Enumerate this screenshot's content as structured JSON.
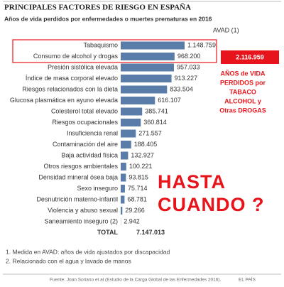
{
  "chart_data": {
    "type": "bar",
    "title": "PRINCIPALES FACTORES DE RIESGO EN ESPAÑA",
    "subtitle": "Años de vida perdidos por enfermedades o muertes prematuras en 2016",
    "value_header": "AVAD (1)",
    "categories": [
      "Tabaquismo",
      "Consumo de alcohol y drogas",
      "Presión sistólica elevada",
      "Índice de masa corporal elevado",
      "Riesgos relacionados con la dieta",
      "Glucosa plasmática en ayuno elevada",
      "Colesterol total elevado",
      "Riesgos ocupacionales",
      "Insuficiencia renal",
      "Contaminación del aire",
      "Baja actividad física",
      "Otros riesgos ambientales",
      "Densidad mineral ósea baja",
      "Sexo inseguro",
      "Desnutrición materno-infantil",
      "Violencia y abuso sexual",
      "Saneamiento inseguro (2)"
    ],
    "values": [
      1148759,
      968200,
      957033,
      913227,
      833504,
      616107,
      385741,
      360814,
      271557,
      188405,
      132927,
      100221,
      93815,
      75714,
      68781,
      29266,
      2942
    ],
    "value_labels": [
      "1.148.759",
      "968.200",
      "957.033",
      "913.227",
      "833.504",
      "616.107",
      "385.741",
      "360.814",
      "271.557",
      "188.405",
      "132.927",
      "100.221",
      "93.815",
      "75.714",
      "68.781",
      "29.266",
      "2.942"
    ],
    "color": "#5a7ca8",
    "total_label": "TOTAL",
    "total": {
      "value": 7147013,
      "label": "7.147.013"
    },
    "highlight": {
      "value": 2116959,
      "label": "2.116.959"
    },
    "highlight_note": [
      "AÑOS de VIDA",
      "PERDIDOS por",
      "TABACO",
      "ALCOHOL y",
      "Otras DROGAS"
    ],
    "annotation": [
      "HASTA",
      "CUANDO ?"
    ],
    "notes": [
      "1. Medida en AVAD: años de vida ajustados por discapacidad",
      "2. Relacionado con el agua y lavado de manos"
    ],
    "source": "Fuente: Joan Soriano et al (Estudio de la Carga Global de las Enfermedades 2016).",
    "publisher": "EL PAÍS"
  }
}
